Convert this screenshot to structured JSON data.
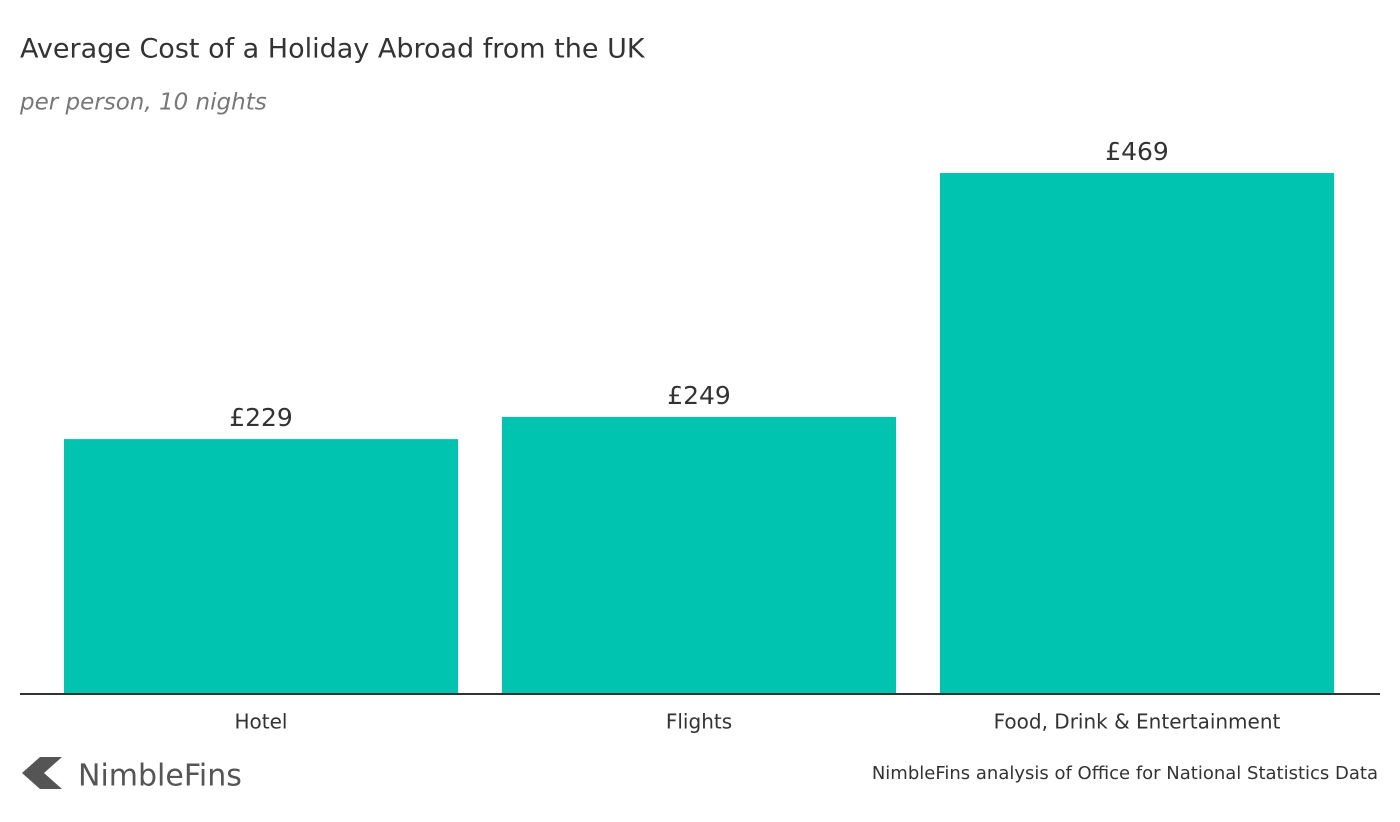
{
  "chart_data": {
    "type": "bar",
    "title": "Average Cost of a Holiday Abroad from the UK",
    "subtitle": "per person, 10 nights",
    "categories": [
      "Hotel",
      "Flights",
      "Food, Drink & Entertainment"
    ],
    "values": [
      229,
      249,
      469
    ],
    "value_labels": [
      "£229",
      "£249",
      "£469"
    ],
    "color": "#00c4b0",
    "brand": "NimbleFins",
    "source": "NimbleFins analysis of Office for National Statistics Data"
  }
}
